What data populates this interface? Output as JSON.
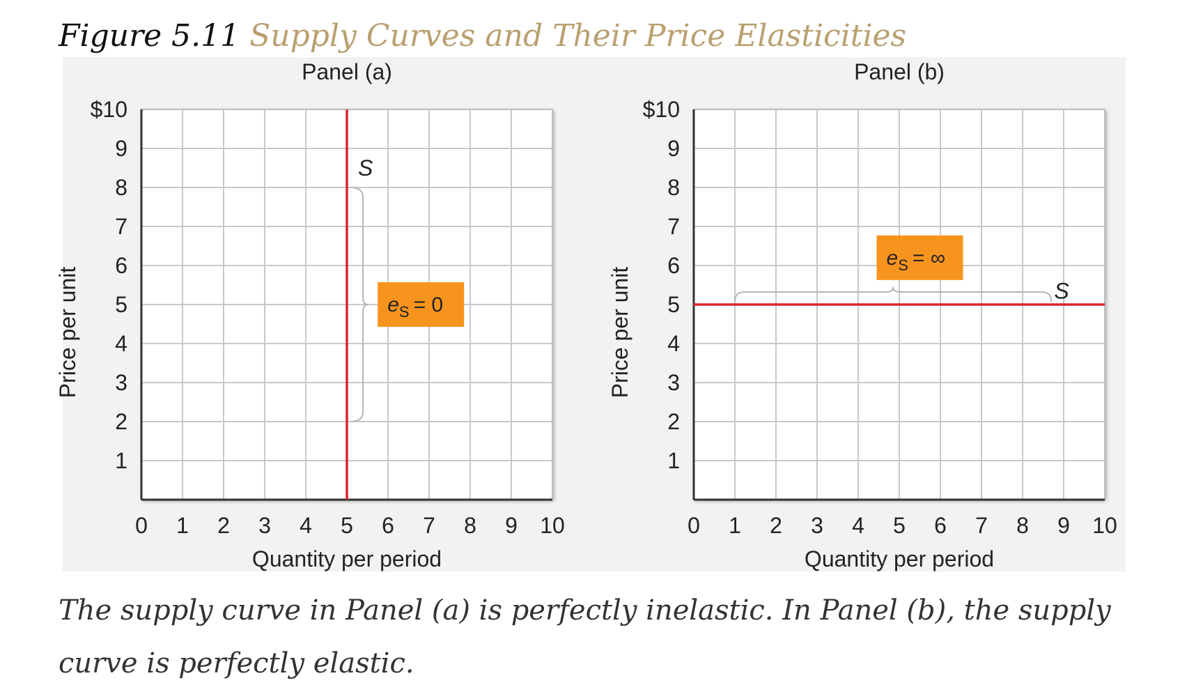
{
  "figure": {
    "number": "Figure 5.11",
    "title": "Supply Curves and Their Price Elasticities"
  },
  "caption": "The supply curve in Panel (a) is perfectly inelastic. In Panel (b), the supply curve is perfectly elastic.",
  "colors": {
    "curve": "#d9262b",
    "label_box": "#f7941d",
    "title_accent": "#b9a06f",
    "grid": "#c8c8c8",
    "background": "#f2f2f2"
  },
  "chart_data": [
    {
      "type": "line",
      "title": "Panel (a)",
      "xlabel": "Quantity per period",
      "ylabel": "Price per unit",
      "xlim": [
        0,
        10
      ],
      "ylim": [
        0,
        10
      ],
      "x_ticks": [
        "0",
        "1",
        "2",
        "3",
        "4",
        "5",
        "6",
        "7",
        "8",
        "9",
        "10"
      ],
      "y_ticks": [
        "1",
        "2",
        "3",
        "4",
        "5",
        "6",
        "7",
        "8",
        "9",
        "$10"
      ],
      "grid": true,
      "series": [
        {
          "name": "S",
          "x": [
            5,
            5
          ],
          "y": [
            0,
            10
          ]
        }
      ],
      "annotations": [
        {
          "text_main": "e",
          "text_sub": "S",
          "text_rest": "= 0",
          "x": 6.8,
          "y": 5
        }
      ],
      "brace": {
        "orientation": "vertical",
        "at": 5,
        "from": 2,
        "to": 8
      }
    },
    {
      "type": "line",
      "title": "Panel (b)",
      "xlabel": "Quantity per period",
      "ylabel": "Price per unit",
      "xlim": [
        0,
        10
      ],
      "ylim": [
        0,
        10
      ],
      "x_ticks": [
        "0",
        "1",
        "2",
        "3",
        "4",
        "5",
        "6",
        "7",
        "8",
        "9",
        "10"
      ],
      "y_ticks": [
        "1",
        "2",
        "3",
        "4",
        "5",
        "6",
        "7",
        "8",
        "9",
        "$10"
      ],
      "grid": true,
      "series": [
        {
          "name": "S",
          "x": [
            0,
            10
          ],
          "y": [
            5,
            5
          ]
        }
      ],
      "annotations": [
        {
          "text_main": "e",
          "text_sub": "S",
          "text_rest": "= ∞",
          "x": 5.5,
          "y": 6.2
        }
      ],
      "brace": {
        "orientation": "horizontal",
        "at": 5,
        "from": 1,
        "to": 8.7
      }
    }
  ]
}
